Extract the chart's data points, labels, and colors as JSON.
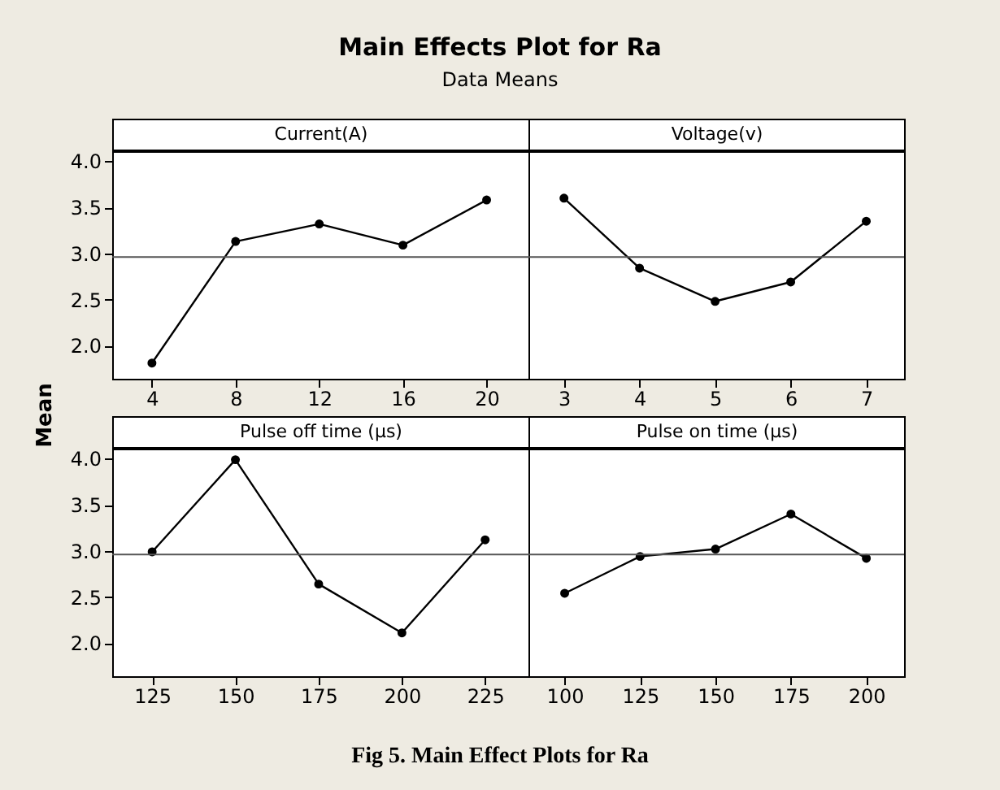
{
  "chart_data": [
    {
      "type": "line",
      "title": "Current(A)",
      "x": [
        4,
        8,
        12,
        16,
        20
      ],
      "series": [
        {
          "color": "#000000",
          "values": [
            1.81,
            3.13,
            3.32,
            3.09,
            3.58
          ]
        }
      ],
      "xlim": [
        2.1,
        22
      ],
      "xticks": [
        4,
        8,
        12,
        16,
        20
      ],
      "ylim": [
        1.64,
        4.11
      ],
      "yticks": [
        {
          "value": 2,
          "label": "2.0"
        },
        {
          "value": 2.5,
          "label": "2.5"
        },
        {
          "value": 3,
          "label": "3.0"
        },
        {
          "value": 3.5,
          "label": "3.5"
        },
        {
          "value": 4,
          "label": "4.0"
        }
      ],
      "ylabel": "Mean",
      "ref_lines": [
        {
          "axis": "y",
          "value": 2.96
        }
      ],
      "marker": "circle",
      "grid": false,
      "annotations": [
        "Main Effects Plot for Ra",
        "Data Means",
        "Fig 5. Main Effect Plots for Ra"
      ]
    },
    {
      "type": "line",
      "title": "Voltage(v)",
      "x": [
        3,
        4,
        5,
        6,
        7
      ],
      "series": [
        {
          "color": "#000000",
          "values": [
            3.6,
            2.84,
            2.48,
            2.69,
            3.35
          ]
        }
      ],
      "xlim": [
        2.53,
        7.5
      ],
      "xticks": [
        3,
        4,
        5,
        6,
        7
      ],
      "ylim": [
        1.64,
        4.11
      ],
      "tick_labels": "x",
      "ref_lines": [
        {
          "axis": "y",
          "value": 2.96
        }
      ],
      "marker": "circle",
      "grid": false
    },
    {
      "type": "line",
      "title": "Pulse off time (µs)",
      "x": [
        125,
        150,
        175,
        200,
        225
      ],
      "series": [
        {
          "color": "#000000",
          "values": [
            2.99,
            3.99,
            2.64,
            2.11,
            3.12
          ]
        }
      ],
      "xlim": [
        113,
        238
      ],
      "xticks": [
        125,
        150,
        175,
        200,
        225
      ],
      "ylim": [
        1.64,
        4.11
      ],
      "yticks": [
        {
          "value": 2,
          "label": "2.0"
        },
        {
          "value": 2.5,
          "label": "2.5"
        },
        {
          "value": 3,
          "label": "3.0"
        },
        {
          "value": 3.5,
          "label": "3.5"
        },
        {
          "value": 4,
          "label": "4.0"
        }
      ],
      "ref_lines": [
        {
          "axis": "y",
          "value": 2.96
        }
      ],
      "marker": "circle",
      "grid": false
    },
    {
      "type": "line",
      "title": "Pulse on time (µs)",
      "x": [
        100,
        125,
        150,
        175,
        200
      ],
      "series": [
        {
          "color": "#000000",
          "values": [
            2.54,
            2.94,
            3.02,
            3.4,
            2.92
          ]
        }
      ],
      "xlim": [
        88,
        212.5
      ],
      "xticks": [
        100,
        125,
        150,
        175,
        200
      ],
      "ylim": [
        1.64,
        4.11
      ],
      "tick_labels": "x",
      "ref_lines": [
        {
          "axis": "y",
          "value": 2.96
        }
      ],
      "marker": "circle",
      "grid": false
    }
  ]
}
